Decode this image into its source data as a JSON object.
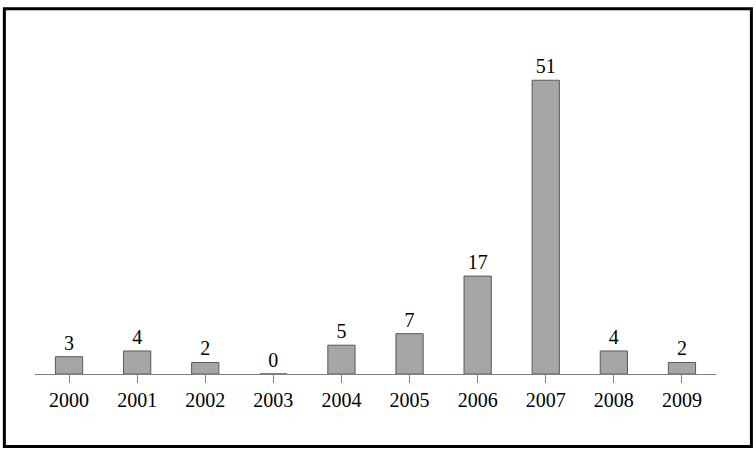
{
  "chart_data": {
    "type": "bar",
    "categories": [
      "2000",
      "2001",
      "2002",
      "2003",
      "2004",
      "2005",
      "2006",
      "2007",
      "2008",
      "2009"
    ],
    "values": [
      3,
      4,
      2,
      0,
      5,
      7,
      17,
      51,
      4,
      2
    ],
    "color": "#a6a6a6",
    "data_labels": true,
    "tick_labels": "x",
    "grid": false
  }
}
